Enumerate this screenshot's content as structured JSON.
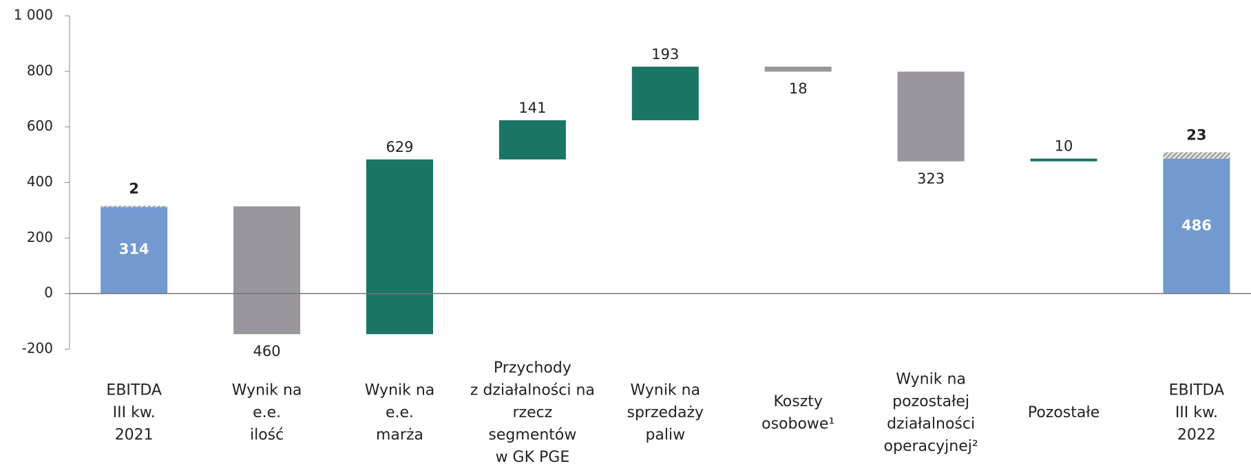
{
  "chart_data": {
    "type": "waterfall",
    "categories": [
      "EBITDA\nIII kw.\n2021",
      "Wynik na\ne.e.\nilość",
      "Wynik na\ne.e.\nmarża",
      "Przychody\nz działalności na\nrzecz\nsegmentów\nw GK PGE",
      "Wynik na\nsprzedaży\npaliw",
      "Koszty\nosobowe¹",
      "Wynik na\npozostałej\ndziałalności\noperacyjnej²",
      "Pozostałe",
      "EBITDA\nIII kw.\n2022"
    ],
    "values": [
      314,
      -460,
      629,
      141,
      193,
      -18,
      -323,
      10,
      486
    ],
    "value_labels": [
      "314",
      "460",
      "629",
      "141",
      "193",
      "18",
      "323",
      "10",
      "486"
    ],
    "adjustments": [
      2,
      null,
      null,
      null,
      null,
      null,
      null,
      null,
      23
    ],
    "colors": {
      "total": "#7399d1",
      "increase": "#1b7565",
      "decrease": "#9a969e"
    },
    "ylim": [
      -200,
      1000
    ],
    "yticks": [
      -200,
      0,
      200,
      400,
      600,
      800,
      {
        "value": 1000,
        "label": "1 000"
      }
    ]
  }
}
